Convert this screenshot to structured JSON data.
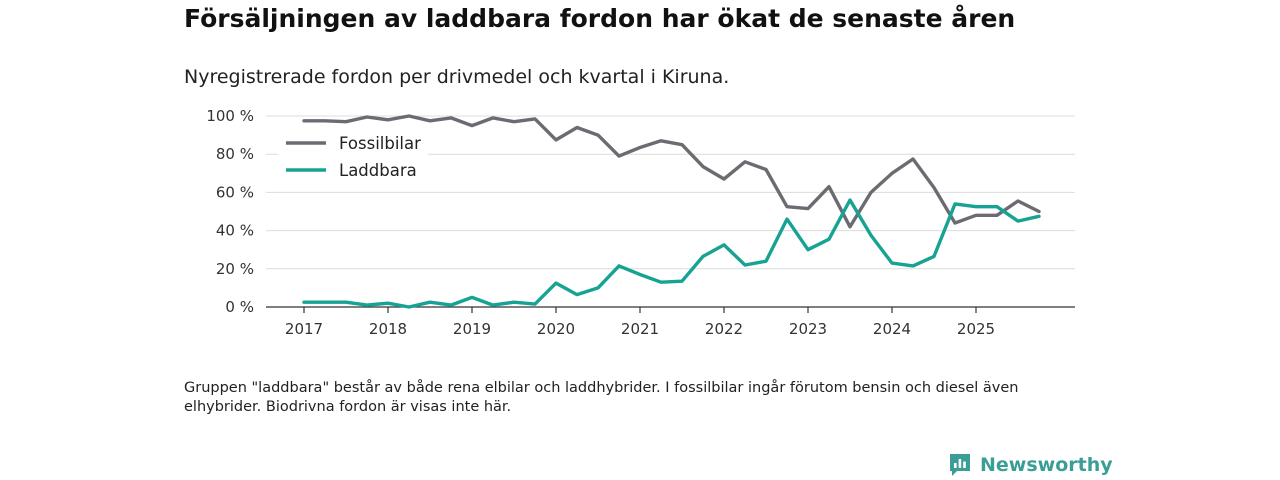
{
  "title": "Försäljningen av laddbara fordon har ökat de senaste åren",
  "subtitle": "Nyregistrerade fordon per drivmedel och kvartal i Kiruna.",
  "note": "Gruppen \"laddbara\" består av både rena elbilar och laddhybrider. I fossilbilar ingår förutom bensin och diesel även elhybrider. Biodrivna fordon är visas inte här.",
  "brand": "Newsworthy",
  "colors": {
    "fossil": "#6d6b72",
    "electric": "#17a394",
    "brand": "#3a9e96"
  },
  "chart_data": {
    "type": "line",
    "title": "Försäljningen av laddbara fordon har ökat de senaste åren",
    "xlabel": "",
    "ylabel": "",
    "ylim": [
      0,
      100
    ],
    "yticks": [
      0,
      20,
      40,
      60,
      80,
      100
    ],
    "ytick_labels": [
      "0 %",
      "20 %",
      "40 %",
      "60 %",
      "80 %",
      "100 %"
    ],
    "xticks": [
      "2017",
      "2018",
      "2019",
      "2020",
      "2021",
      "2022",
      "2023",
      "2024",
      "2025"
    ],
    "x_start": 2017,
    "x_step": 0.25,
    "legend_position": "top-left",
    "grid": true,
    "series": [
      {
        "name": "Fossilbilar",
        "color": "#6d6b72",
        "values": [
          97.5,
          97.5,
          97,
          99.5,
          98,
          100,
          97.5,
          99,
          95,
          99,
          97,
          98.5,
          87.5,
          94,
          90,
          79,
          83.5,
          87,
          85,
          73.5,
          67,
          76,
          72,
          52.5,
          51.5,
          63,
          42,
          60,
          70,
          77.5,
          62.5,
          44,
          48,
          48,
          55.5,
          50
        ]
      },
      {
        "name": "Laddbara",
        "color": "#17a394",
        "values": [
          2.5,
          2.5,
          2.5,
          1,
          2,
          0,
          2.5,
          1,
          5,
          1,
          2.5,
          1.5,
          12.5,
          6.5,
          10,
          21.5,
          17,
          13,
          13.5,
          26.5,
          32.5,
          22,
          24,
          46,
          30,
          35.5,
          56,
          37.5,
          23,
          21.5,
          26.5,
          54,
          52.5,
          52.5,
          45,
          47.5
        ]
      }
    ]
  }
}
